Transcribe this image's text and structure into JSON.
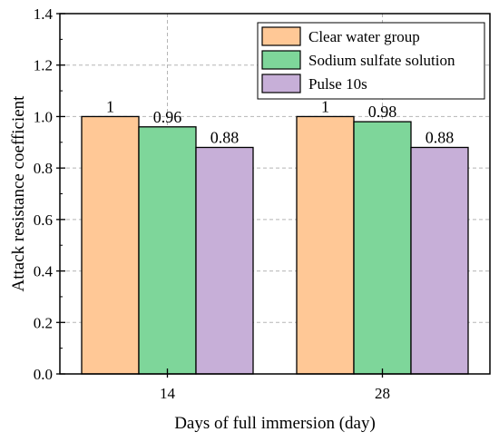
{
  "chart_data": {
    "type": "bar",
    "categories": [
      "14",
      "28"
    ],
    "series": [
      {
        "name": "Clear water group",
        "values": [
          1,
          1
        ],
        "labels": [
          "1",
          "1"
        ],
        "color": "#FFC896"
      },
      {
        "name": "Sodium sulfate solution",
        "values": [
          0.96,
          0.98
        ],
        "labels": [
          "0.96",
          "0.98"
        ],
        "color": "#7ED69A"
      },
      {
        "name": "Pulse 10s",
        "values": [
          0.88,
          0.88
        ],
        "labels": [
          "0.88",
          "0.88"
        ],
        "color": "#C7AFD8"
      }
    ],
    "title": "",
    "xlabel": "Days of full immersion (day)",
    "ylabel": "Attack resistance coefficient",
    "ylim": [
      0,
      1.4
    ],
    "yticks": [
      "0.0",
      "0.2",
      "0.4",
      "0.6",
      "0.8",
      "1.0",
      "1.2",
      "1.4"
    ],
    "grid": true,
    "legend_position": "top-right"
  }
}
